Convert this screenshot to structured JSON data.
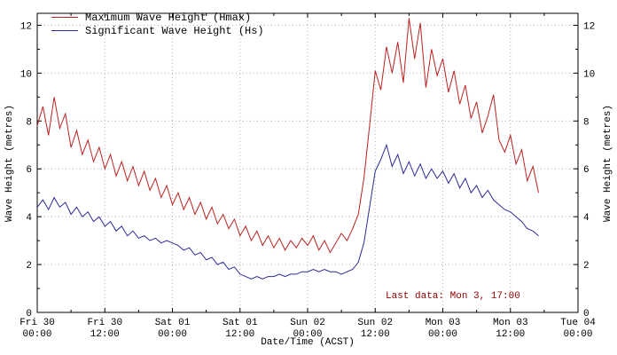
{
  "chart_data": {
    "type": "line",
    "title": "",
    "xlabel": "Date/Time (ACST)",
    "ylabel": "Wave Height (metres)",
    "x_unit": "hours since Fri 30 00:00",
    "xlim": [
      0,
      96
    ],
    "ylim": [
      0,
      12.5
    ],
    "grid": true,
    "grid_color": "#b4b4b4",
    "frame_color": "#000000",
    "legend_position": "top-left",
    "y_ticks": [
      0,
      2,
      4,
      6,
      8,
      10,
      12
    ],
    "x_ticks": [
      {
        "hour": 0,
        "day": "Fri 30",
        "time": "00:00"
      },
      {
        "hour": 12,
        "day": "Fri 30",
        "time": "12:00"
      },
      {
        "hour": 24,
        "day": "Sat 01",
        "time": "00:00"
      },
      {
        "hour": 36,
        "day": "Sat 01",
        "time": "12:00"
      },
      {
        "hour": 48,
        "day": "Sun 02",
        "time": "00:00"
      },
      {
        "hour": 60,
        "day": "Sun 02",
        "time": "12:00"
      },
      {
        "hour": 72,
        "day": "Mon 03",
        "time": "00:00"
      },
      {
        "hour": 84,
        "day": "Mon 03",
        "time": "12:00"
      },
      {
        "hour": 96,
        "day": "Tue 04",
        "time": "00:00"
      }
    ],
    "annotation": {
      "text": "Last data: Mon 3, 17:00",
      "color": "#8b0000"
    },
    "series": [
      {
        "name": "Maximum Wave Height (Hmax)",
        "color": "#bb2222",
        "x_start": 0,
        "x_step": 1,
        "values": [
          7.8,
          8.6,
          7.4,
          9.0,
          7.7,
          8.3,
          6.9,
          7.6,
          6.6,
          7.2,
          6.3,
          6.9,
          6.0,
          6.6,
          5.7,
          6.3,
          5.5,
          6.1,
          5.3,
          5.9,
          5.1,
          5.6,
          4.8,
          5.3,
          4.5,
          5.0,
          4.3,
          4.8,
          4.1,
          4.6,
          3.9,
          4.4,
          3.7,
          4.1,
          3.5,
          3.9,
          3.2,
          3.6,
          3.0,
          3.4,
          2.8,
          3.2,
          2.7,
          3.1,
          2.6,
          3.0,
          2.7,
          3.1,
          2.8,
          3.2,
          2.6,
          3.0,
          2.5,
          2.9,
          3.3,
          3.0,
          3.5,
          4.1,
          5.6,
          7.8,
          10.1,
          9.3,
          11.1,
          10.0,
          11.3,
          9.6,
          12.3,
          10.6,
          12.1,
          9.4,
          11.0,
          9.9,
          10.6,
          9.2,
          10.1,
          8.7,
          9.5,
          8.1,
          8.8,
          7.5,
          8.2,
          9.1,
          7.2,
          6.7,
          7.4,
          6.2,
          6.8,
          5.5,
          6.1,
          5.0
        ]
      },
      {
        "name": "Significant Wave Height (Hs)",
        "color": "#2a2a99",
        "x_start": 0,
        "x_step": 1,
        "values": [
          4.4,
          4.7,
          4.3,
          4.8,
          4.4,
          4.6,
          4.1,
          4.4,
          4.0,
          4.2,
          3.8,
          4.0,
          3.6,
          3.8,
          3.4,
          3.6,
          3.2,
          3.4,
          3.1,
          3.2,
          3.0,
          3.1,
          2.9,
          3.0,
          2.9,
          2.8,
          2.6,
          2.7,
          2.4,
          2.5,
          2.2,
          2.3,
          2.0,
          2.1,
          1.8,
          1.9,
          1.6,
          1.5,
          1.4,
          1.5,
          1.4,
          1.5,
          1.5,
          1.6,
          1.5,
          1.6,
          1.6,
          1.7,
          1.7,
          1.8,
          1.7,
          1.8,
          1.7,
          1.7,
          1.6,
          1.7,
          1.8,
          2.1,
          2.9,
          4.4,
          5.9,
          6.4,
          7.0,
          6.1,
          6.6,
          5.8,
          6.3,
          5.7,
          6.2,
          5.6,
          6.0,
          5.6,
          5.9,
          5.4,
          5.8,
          5.2,
          5.6,
          5.0,
          5.3,
          4.8,
          5.1,
          4.7,
          4.5,
          4.3,
          4.2,
          4.0,
          3.8,
          3.5,
          3.4,
          3.2
        ]
      }
    ]
  }
}
